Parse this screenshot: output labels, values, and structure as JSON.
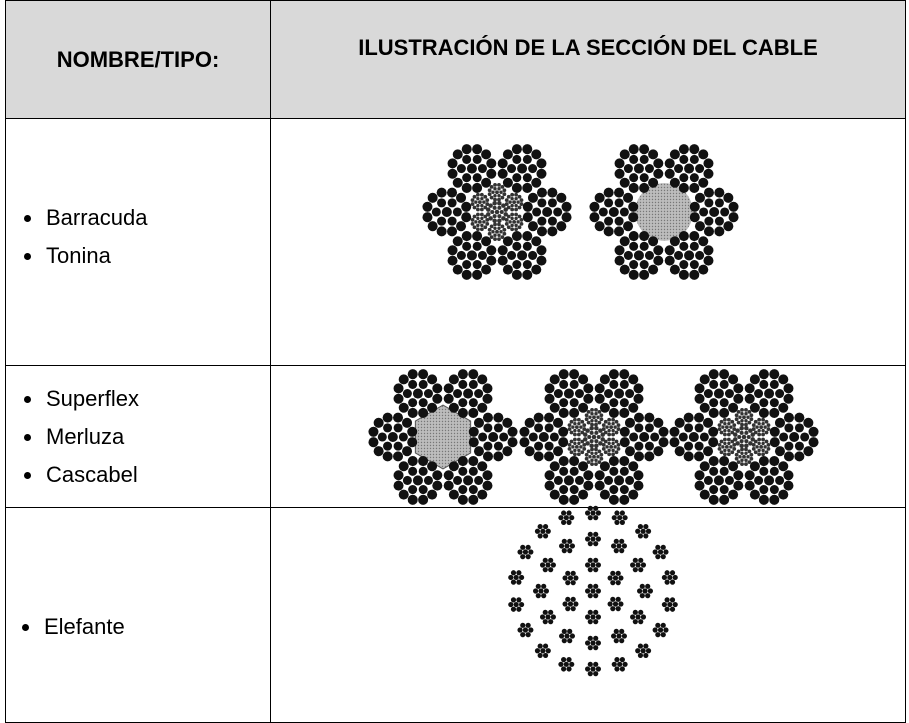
{
  "header": {
    "col1": "NOMBRE/TIPO:",
    "col2": "ILUSTRACIÓN DE LA SECCIÓN DEL CABLE"
  },
  "rows": [
    {
      "items": [
        "Barracuda",
        "Tonina"
      ]
    },
    {
      "items": [
        "Superflex",
        "Merluza",
        "Cascabel"
      ]
    },
    {
      "items": [
        "Elefante"
      ]
    }
  ]
}
